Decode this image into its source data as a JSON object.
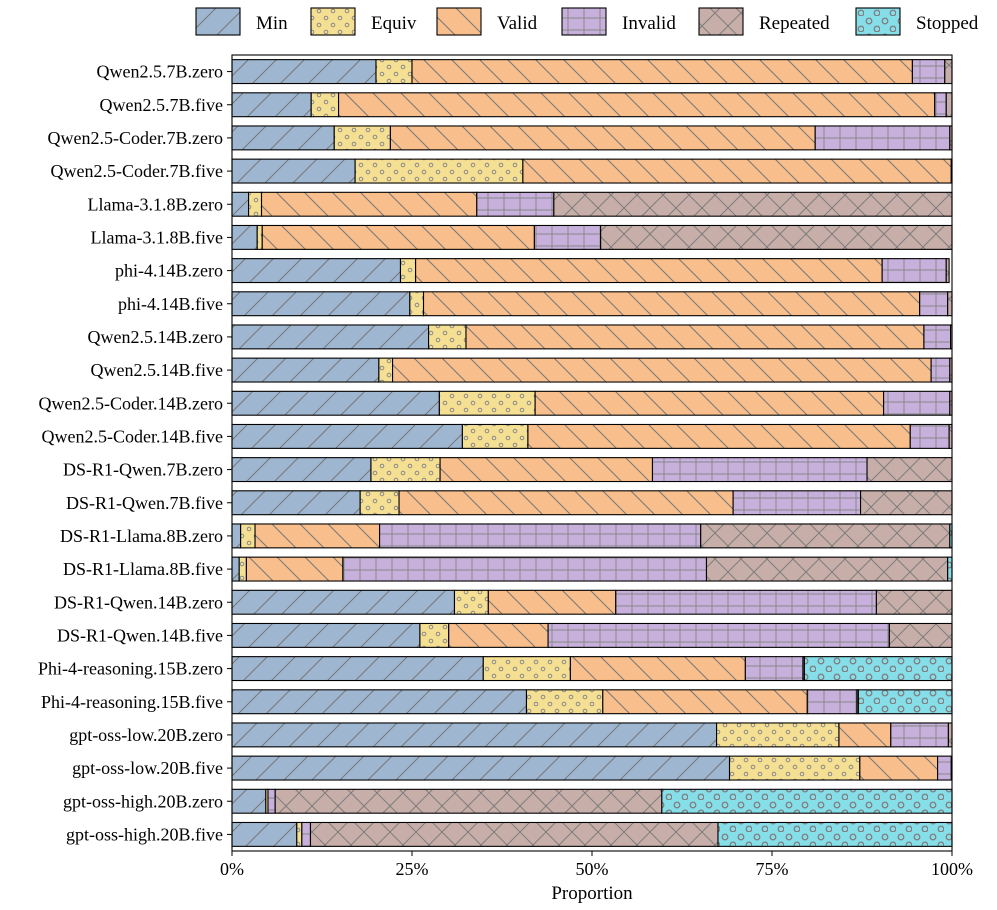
{
  "chart_data": {
    "type": "bar",
    "orientation": "horizontal",
    "stacked": true,
    "normalized": true,
    "title": "",
    "xlabel": "Proportion",
    "ylabel": "",
    "xlim": [
      0,
      1
    ],
    "xticks": [
      {
        "value": 0,
        "label": "0%"
      },
      {
        "value": 0.25,
        "label": "25%"
      },
      {
        "value": 0.5,
        "label": "50%"
      },
      {
        "value": 0.75,
        "label": "75%"
      },
      {
        "value": 1,
        "label": "100%"
      }
    ],
    "grid": false,
    "legend_position": "top",
    "categories": [
      "Qwen2.5.7B.zero",
      "Qwen2.5.7B.five",
      "Qwen2.5-Coder.7B.zero",
      "Qwen2.5-Coder.7B.five",
      "Llama-3.1.8B.zero",
      "Llama-3.1.8B.five",
      "phi-4.14B.zero",
      "phi-4.14B.five",
      "Qwen2.5.14B.zero",
      "Qwen2.5.14B.five",
      "Qwen2.5-Coder.14B.zero",
      "Qwen2.5-Coder.14B.five",
      "DS-R1-Qwen.7B.zero",
      "DS-R1-Qwen.7B.five",
      "DS-R1-Llama.8B.zero",
      "DS-R1-Llama.8B.five",
      "DS-R1-Qwen.14B.zero",
      "DS-R1-Qwen.14B.five",
      "Phi-4-reasoning.15B.zero",
      "Phi-4-reasoning.15B.five",
      "gpt-oss-low.20B.zero",
      "gpt-oss-low.20B.five",
      "gpt-oss-high.20B.zero",
      "gpt-oss-high.20B.five"
    ],
    "series": [
      {
        "name": "Min",
        "color": "#9FB6D0",
        "pattern": "diag-forward",
        "values": [
          0.2,
          0.11,
          0.142,
          0.171,
          0.023,
          0.035,
          0.234,
          0.247,
          0.273,
          0.204,
          0.288,
          0.32,
          0.193,
          0.178,
          0.012,
          0.01,
          0.309,
          0.261,
          0.349,
          0.409,
          0.673,
          0.691,
          0.047,
          0.09
        ]
      },
      {
        "name": "Equiv",
        "color": "#F5DF93",
        "pattern": "small-dots",
        "values": [
          0.05,
          0.038,
          0.078,
          0.233,
          0.018,
          0.007,
          0.021,
          0.019,
          0.052,
          0.019,
          0.133,
          0.091,
          0.096,
          0.054,
          0.02,
          0.01,
          0.047,
          0.04,
          0.121,
          0.106,
          0.17,
          0.181,
          0.003,
          0.007
        ]
      },
      {
        "name": "Valid",
        "color": "#F8BE8B",
        "pattern": "diag-back",
        "values": [
          0.695,
          0.828,
          0.59,
          0.595,
          0.299,
          0.378,
          0.648,
          0.689,
          0.636,
          0.748,
          0.484,
          0.531,
          0.295,
          0.464,
          0.173,
          0.134,
          0.177,
          0.138,
          0.243,
          0.284,
          0.072,
          0.108,
          0.0,
          0.0
        ]
      },
      {
        "name": "Invalid",
        "color": "#C8B0DC",
        "pattern": "grid",
        "values": [
          0.045,
          0.016,
          0.187,
          0.0,
          0.107,
          0.092,
          0.089,
          0.039,
          0.037,
          0.026,
          0.092,
          0.054,
          0.298,
          0.177,
          0.446,
          0.505,
          0.362,
          0.474,
          0.08,
          0.069,
          0.08,
          0.019,
          0.01,
          0.012
        ]
      },
      {
        "name": "Repeated",
        "color": "#C8AEA8",
        "pattern": "cross",
        "values": [
          0.01,
          0.008,
          0.003,
          0.001,
          0.553,
          0.488,
          0.004,
          0.006,
          0.002,
          0.003,
          0.003,
          0.004,
          0.118,
          0.127,
          0.346,
          0.335,
          0.105,
          0.087,
          0.002,
          0.002,
          0.005,
          0.001,
          0.537,
          0.566
        ]
      },
      {
        "name": "Stopped",
        "color": "#86DEE8",
        "pattern": "big-circles",
        "values": [
          0,
          0,
          0,
          0,
          0,
          0,
          0,
          0,
          0,
          0,
          0,
          0,
          0,
          0,
          0.003,
          0.006,
          0,
          0,
          0.205,
          0.13,
          0,
          0,
          0.403,
          0.325
        ]
      }
    ]
  }
}
